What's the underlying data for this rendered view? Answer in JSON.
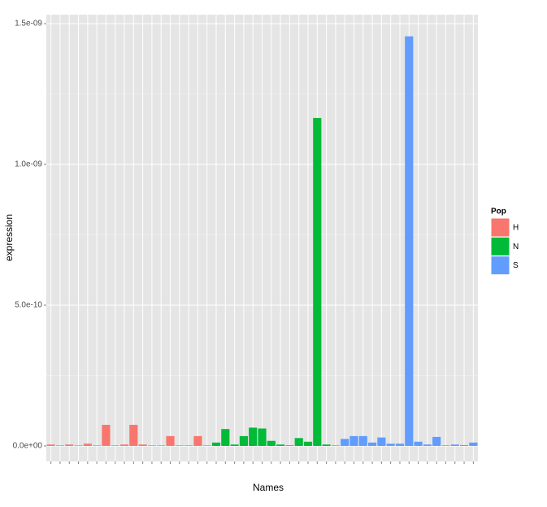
{
  "chart_data": {
    "type": "bar",
    "x_label": "Names",
    "y_label": "expression",
    "legend_title": "Pop",
    "categories": [
      null,
      null,
      null,
      null,
      null,
      null,
      null,
      null,
      null,
      null,
      null,
      null,
      null,
      null,
      null,
      null,
      null,
      null,
      null,
      null,
      null,
      null,
      null,
      null,
      null,
      null,
      null,
      null,
      null,
      null,
      null,
      null,
      null,
      null,
      null,
      null,
      null,
      null,
      null,
      null,
      null,
      null,
      null,
      null,
      null,
      null,
      null
    ],
    "series": [
      {
        "name": "H",
        "color": "#f8766d",
        "values": [
          5e-12,
          2e-12,
          5e-12,
          2e-12,
          8e-12,
          2e-12,
          7.5e-11,
          2e-12,
          5e-12,
          7.5e-11,
          5e-12,
          2e-12,
          2e-12,
          3.5e-11,
          2e-12,
          2e-12,
          3.5e-11,
          2e-12,
          null,
          null,
          null,
          null,
          null,
          null,
          null,
          null,
          null,
          null,
          null,
          null,
          null,
          null,
          null,
          null,
          null,
          null,
          null,
          null,
          null,
          null,
          null,
          null,
          null,
          null,
          null,
          null,
          null
        ]
      },
      {
        "name": "N",
        "color": "#00ba38",
        "values": [
          null,
          null,
          null,
          null,
          null,
          null,
          null,
          null,
          null,
          null,
          null,
          null,
          null,
          null,
          null,
          null,
          null,
          null,
          1.2e-11,
          6e-11,
          5e-12,
          3.5e-11,
          6.5e-11,
          6.2e-11,
          1.8e-11,
          5e-12,
          2e-12,
          2.8e-11,
          1.5e-11,
          1.165e-09,
          5e-12,
          null,
          null,
          null,
          null,
          null,
          null,
          null,
          null,
          null,
          null,
          null,
          null,
          null,
          null,
          null,
          null
        ]
      },
      {
        "name": "S",
        "color": "#619cff",
        "values": [
          null,
          null,
          null,
          null,
          null,
          null,
          null,
          null,
          null,
          null,
          null,
          null,
          null,
          null,
          null,
          null,
          null,
          null,
          null,
          null,
          null,
          null,
          null,
          null,
          null,
          null,
          null,
          null,
          null,
          null,
          null,
          2e-12,
          2.5e-11,
          3.5e-11,
          3.5e-11,
          1.2e-11,
          3e-11,
          8e-12,
          8e-12,
          1.455e-09,
          1.5e-11,
          5e-12,
          3.2e-11,
          2e-12,
          5e-12,
          3e-12,
          1.2e-11
        ]
      }
    ],
    "ylim": [
      -5.5e-11,
      1.532e-09
    ],
    "yticks": [
      {
        "value": 0,
        "label": "0.0e+00"
      },
      {
        "value": 5e-10,
        "label": "5.0e-10"
      },
      {
        "value": 1e-09,
        "label": "1.0e-09"
      },
      {
        "value": 1.5e-09,
        "label": "1.5e-09"
      }
    ],
    "grid": true
  }
}
